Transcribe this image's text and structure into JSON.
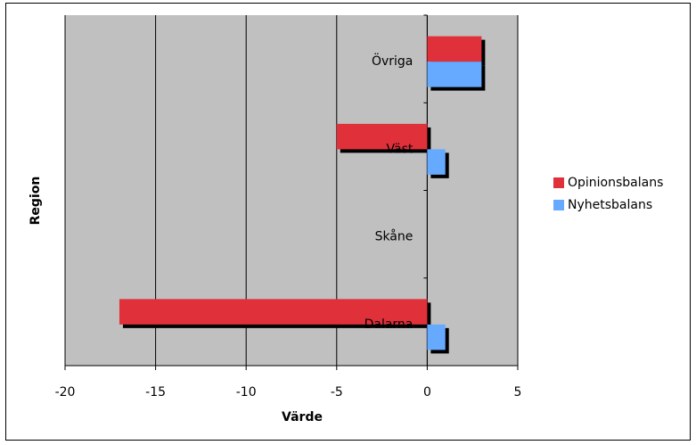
{
  "chart_data": {
    "type": "hbar",
    "categories": [
      "Dalarna",
      "Skåne",
      "Väst",
      "Övriga"
    ],
    "series": [
      {
        "name": "Opinionsbalans",
        "color": "#e0303a",
        "values": [
          -17,
          0,
          -5,
          3
        ]
      },
      {
        "name": "Nyhetsbalans",
        "color": "#66aaff",
        "values": [
          1,
          0,
          1,
          3
        ]
      }
    ],
    "xlabel": "Värde",
    "ylabel": "Region",
    "xlim": [
      -20,
      5
    ],
    "xticks": [
      -20,
      -15,
      -10,
      -5,
      0,
      5
    ],
    "grid": true,
    "legend": "right",
    "background": "#c0c0c0"
  }
}
